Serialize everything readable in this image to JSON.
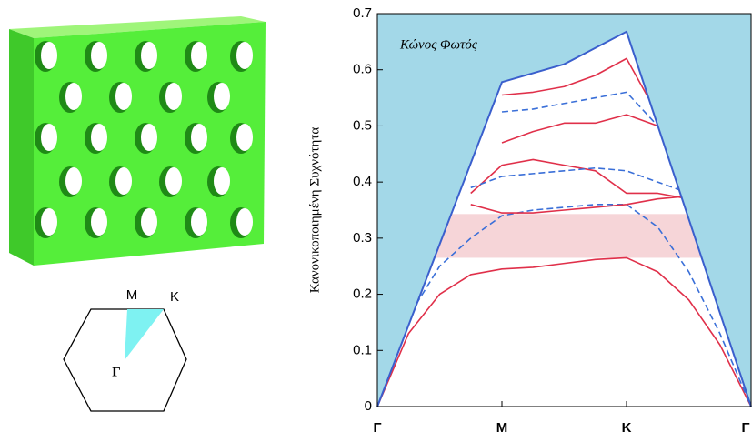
{
  "chart_data": {
    "type": "band_diagram",
    "ylabel": "Κανονικοποιημένη Συχνότητα",
    "annotation": "Κώνος Φωτός",
    "xlim": [
      0,
      3
    ],
    "xticks": [
      {
        "value": 0,
        "label": "Γ"
      },
      {
        "value": 1,
        "label": "M"
      },
      {
        "value": 2,
        "label": "K"
      },
      {
        "value": 3,
        "label": "Γ"
      }
    ],
    "ylim": [
      0,
      0.7
    ],
    "yticks": [
      0,
      0.1,
      0.2,
      0.3,
      0.4,
      0.5,
      0.6,
      0.7
    ],
    "light_cone": {
      "x": [
        0,
        1,
        1.5,
        2,
        3
      ],
      "values": [
        0,
        0.578,
        0.61,
        0.668,
        0
      ],
      "color": "#3a5fcd",
      "fill": "#a3d8e8"
    },
    "band_gap": {
      "ylim": [
        0.265,
        0.343
      ],
      "color": "#f6d5d8"
    },
    "x": [
      0,
      0.25,
      0.5,
      0.75,
      1,
      1.25,
      1.5,
      1.75,
      2,
      2.25,
      2.5,
      2.75,
      3
    ],
    "series": [
      {
        "color": "#e0304a",
        "dash": false,
        "values": [
          0,
          0.13,
          0.2,
          0.235,
          0.245,
          0.248,
          0.255,
          0.262,
          0.265,
          0.24,
          0.19,
          0.11,
          0
        ]
      },
      {
        "color": "#3a6fd8",
        "dash": true,
        "values": [
          0,
          0.16,
          0.25,
          0.3,
          0.34,
          0.35,
          0.355,
          0.36,
          0.36,
          0.32,
          0.24,
          0.13,
          0
        ]
      },
      {
        "color": "#e0304a",
        "dash": false,
        "values": [
          null,
          null,
          null,
          0.36,
          0.345,
          0.345,
          0.35,
          0.355,
          0.36,
          0.37,
          0.375,
          null,
          null
        ]
      },
      {
        "color": "#e0304a",
        "dash": false,
        "values": [
          null,
          null,
          null,
          0.38,
          0.43,
          0.44,
          0.43,
          0.42,
          0.38,
          0.38,
          0.37,
          null,
          null
        ]
      },
      {
        "color": "#3a6fd8",
        "dash": true,
        "values": [
          null,
          null,
          null,
          0.39,
          0.41,
          0.415,
          0.42,
          0.425,
          0.42,
          0.4,
          0.38,
          null,
          null
        ]
      },
      {
        "color": "#e0304a",
        "dash": false,
        "values": [
          null,
          null,
          null,
          null,
          0.47,
          0.49,
          0.505,
          0.505,
          0.52,
          0.5,
          null,
          null,
          null
        ]
      },
      {
        "color": "#3a6fd8",
        "dash": true,
        "values": [
          null,
          null,
          null,
          null,
          0.525,
          0.53,
          0.54,
          0.55,
          0.56,
          0.5,
          null,
          null,
          null
        ]
      },
      {
        "color": "#e0304a",
        "dash": false,
        "values": [
          null,
          null,
          null,
          null,
          0.555,
          0.56,
          0.57,
          0.59,
          0.62,
          0.52,
          null,
          null,
          null
        ]
      }
    ]
  },
  "brillouin_zone": {
    "m": "M",
    "k": "K",
    "gamma": "Γ"
  }
}
